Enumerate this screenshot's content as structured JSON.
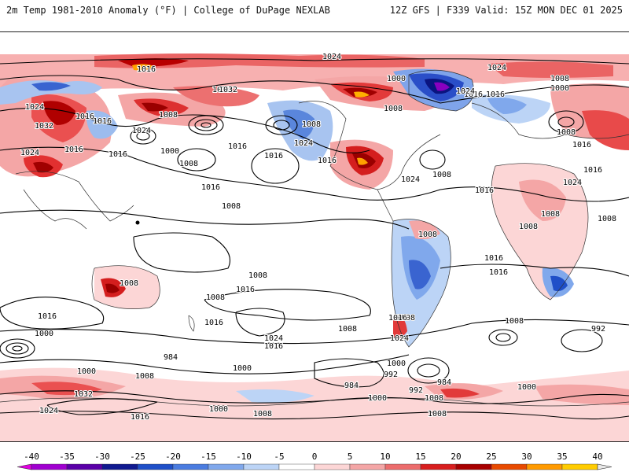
{
  "header": {
    "title_left": "2m Temp 1981-2010 Anomaly (°F) | College of DuPage NEXLAB",
    "title_right": "12Z GFS | F339 Valid: 15Z MON DEC 01 2025"
  },
  "map": {
    "variable": "2m Temperature Anomaly",
    "units": "°F",
    "isobar_labels": [
      {
        "text": "1024"
      },
      {
        "text": "1016"
      },
      {
        "text": "1024"
      },
      {
        "text": "1032"
      },
      {
        "text": "1024"
      },
      {
        "text": "1016"
      },
      {
        "text": "1032"
      },
      {
        "text": "1016"
      },
      {
        "text": "1008"
      },
      {
        "text": "1000"
      },
      {
        "text": "1008"
      },
      {
        "text": "1016"
      },
      {
        "text": "1024"
      },
      {
        "text": "1016"
      },
      {
        "text": "1008"
      },
      {
        "text": "1024"
      },
      {
        "text": "1016"
      },
      {
        "text": "1016"
      },
      {
        "text": "1000"
      },
      {
        "text": "1008"
      },
      {
        "text": "1008"
      },
      {
        "text": "1016"
      },
      {
        "text": "1008"
      },
      {
        "text": "1016"
      },
      {
        "text": "1024"
      },
      {
        "text": "1016"
      },
      {
        "text": "1024"
      },
      {
        "text": "1032"
      },
      {
        "text": "1024"
      },
      {
        "text": "1008"
      },
      {
        "text": "1000"
      },
      {
        "text": "1016"
      },
      {
        "text": "1008"
      },
      {
        "text": "1016"
      },
      {
        "text": "1016"
      },
      {
        "text": "1016"
      },
      {
        "text": "1024"
      },
      {
        "text": "1008"
      },
      {
        "text": "1008"
      },
      {
        "text": "1008"
      },
      {
        "text": "1008"
      },
      {
        "text": "1016"
      },
      {
        "text": "1008"
      },
      {
        "text": "1016"
      },
      {
        "text": "1008"
      },
      {
        "text": "1008"
      },
      {
        "text": "1016"
      },
      {
        "text": "992"
      },
      {
        "text": "1000"
      },
      {
        "text": "984"
      },
      {
        "text": "1008"
      },
      {
        "text": "1024"
      },
      {
        "text": "1016"
      },
      {
        "text": "1008"
      },
      {
        "text": "1016"
      },
      {
        "text": "1024"
      },
      {
        "text": "1016"
      },
      {
        "text": "1000"
      },
      {
        "text": "1000"
      },
      {
        "text": "992"
      },
      {
        "text": "984"
      },
      {
        "text": "992"
      },
      {
        "text": "984"
      },
      {
        "text": "1000"
      },
      {
        "text": "1008"
      },
      {
        "text": "1000"
      },
      {
        "text": "1008"
      },
      {
        "text": "1032"
      },
      {
        "text": "1024"
      },
      {
        "text": "1016"
      },
      {
        "text": "1000"
      },
      {
        "text": "1008"
      },
      {
        "text": "1000"
      },
      {
        "text": "1008"
      },
      {
        "text": "992"
      },
      {
        "text": "1016"
      },
      {
        "text": "1008"
      }
    ]
  },
  "colorbar": {
    "ticks": [
      "-40",
      "-35",
      "-30",
      "-25",
      "-20",
      "-15",
      "-10",
      "-5",
      "0",
      "5",
      "10",
      "15",
      "20",
      "25",
      "30",
      "35",
      "40"
    ],
    "colors": [
      "#e000e0",
      "#a000d0",
      "#5a00a8",
      "#101a90",
      "#1f4fc8",
      "#4a7ce0",
      "#80a8ec",
      "#bcd4f6",
      "#ffffff",
      "#fcd6d6",
      "#f4a6a6",
      "#ec6c6c",
      "#d81e1e",
      "#a80000",
      "#e84a00",
      "#ff9a00",
      "#ffcc00"
    ]
  }
}
